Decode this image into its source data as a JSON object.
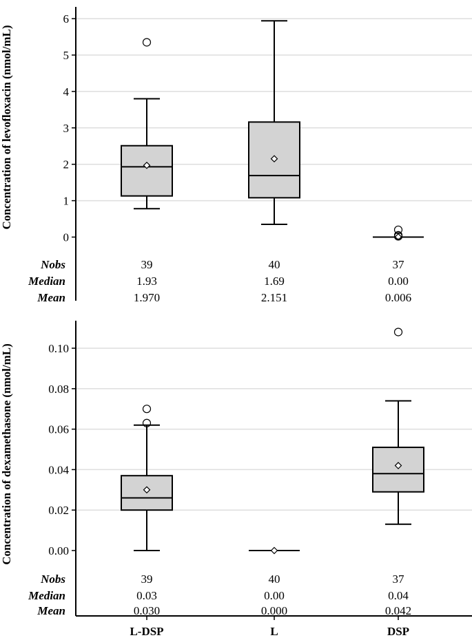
{
  "chart_data": [
    {
      "type": "boxplot",
      "ylabel": "Concentration of levofloxacin (nmol/mL)",
      "ylim": [
        0,
        6.3
      ],
      "yticks": [
        0,
        1,
        2,
        3,
        4,
        5,
        6
      ],
      "ytick_labels": [
        "0",
        "1",
        "2",
        "3",
        "4",
        "5",
        "6"
      ],
      "grid": true,
      "categories": [
        "L-DSP",
        "L",
        "DSP"
      ],
      "boxes": [
        {
          "category": "L-DSP",
          "whisker_low": 0.78,
          "q1": 1.13,
          "median": 1.93,
          "q3": 2.51,
          "whisker_high": 3.8,
          "mean": 1.97,
          "outliers": [
            5.35
          ]
        },
        {
          "category": "L",
          "whisker_low": 0.35,
          "q1": 1.08,
          "median": 1.69,
          "q3": 3.16,
          "whisker_high": 5.94,
          "mean": 2.151,
          "outliers": []
        },
        {
          "category": "DSP",
          "whisker_low": 0.0,
          "q1": 0.0,
          "median": 0.0,
          "q3": 0.0,
          "whisker_high": 0.0,
          "mean": 0.006,
          "outliers": [
            0.2,
            0.05,
            0.02
          ]
        }
      ],
      "stats": {
        "labels": [
          "Nobs",
          "Median",
          "Mean"
        ],
        "rows": [
          [
            "39",
            "40",
            "37"
          ],
          [
            "1.93",
            "1.69",
            "0.00"
          ],
          [
            "1.970",
            "2.151",
            "0.006"
          ]
        ]
      }
    },
    {
      "type": "boxplot",
      "ylabel": "Concentration of dexamethasone (nmol/mL)",
      "ylim": [
        0,
        0.113
      ],
      "yticks": [
        0,
        0.02,
        0.04,
        0.06,
        0.08,
        0.1
      ],
      "ytick_labels": [
        "0.00",
        "0.02",
        "0.04",
        "0.06",
        "0.08",
        "0.10"
      ],
      "grid": true,
      "categories": [
        "L-DSP",
        "L",
        "DSP"
      ],
      "boxes": [
        {
          "category": "L-DSP",
          "whisker_low": 0.0,
          "q1": 0.02,
          "median": 0.026,
          "q3": 0.037,
          "whisker_high": 0.062,
          "mean": 0.03,
          "outliers": [
            0.07,
            0.063
          ]
        },
        {
          "category": "L",
          "whisker_low": 0.0,
          "q1": 0.0,
          "median": 0.0,
          "q3": 0.0,
          "whisker_high": 0.0,
          "mean": 0.0,
          "outliers": []
        },
        {
          "category": "DSP",
          "whisker_low": 0.013,
          "q1": 0.029,
          "median": 0.038,
          "q3": 0.051,
          "whisker_high": 0.074,
          "mean": 0.042,
          "outliers": [
            0.108
          ]
        }
      ],
      "stats": {
        "labels": [
          "Nobs",
          "Median",
          "Mean"
        ],
        "rows": [
          [
            "39",
            "40",
            "37"
          ],
          [
            "0.03",
            "0.00",
            "0.04"
          ],
          [
            "0.030",
            "0.000",
            "0.042"
          ]
        ]
      }
    }
  ],
  "colors": {
    "box_fill": "#d3d3d3",
    "grid": "#dedede",
    "line": "#000000"
  }
}
